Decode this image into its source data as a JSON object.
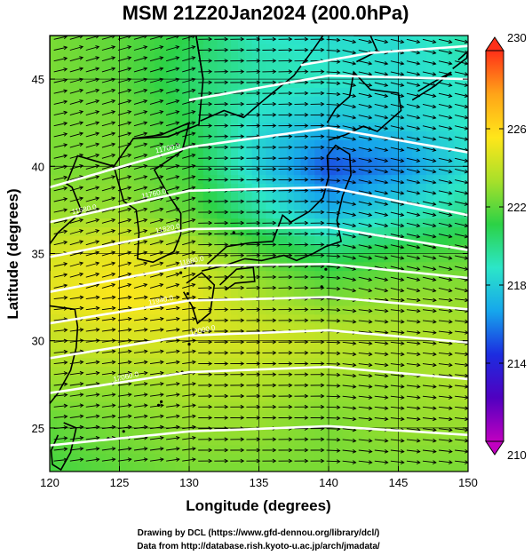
{
  "chart_data": {
    "type": "heatmap",
    "title": "MSM 21Z20Jan2024 (200.0hPa)",
    "xlabel": "Longitude (degrees)",
    "ylabel": "Latitude  (degrees)",
    "xlim": [
      120,
      150
    ],
    "ylim": [
      22.5,
      47.5
    ],
    "xticks": [
      120,
      125,
      130,
      135,
      140,
      145,
      150
    ],
    "yticks": [
      25,
      30,
      35,
      40,
      45
    ],
    "colorbar": {
      "min": 210,
      "max": 230,
      "ticks": [
        210,
        214,
        218,
        222,
        226,
        230
      ],
      "colors": [
        "#c000c0",
        "#5000c0",
        "#1c2ce0",
        "#16a6ec",
        "#2ce6c8",
        "#2cd246",
        "#a8e02a",
        "#ffe61a",
        "#ffa418",
        "#ff3018"
      ]
    },
    "temperature_field_K": {
      "lon": [
        120,
        125,
        130,
        135,
        140,
        145,
        150
      ],
      "lat": [
        47.5,
        45,
        42.5,
        40,
        37.5,
        35,
        32.5,
        30,
        27.5,
        25,
        22.5
      ],
      "values": [
        [
          222.5,
          222.0,
          221.0,
          219.0,
          218.5,
          218.5,
          219.5
        ],
        [
          222.5,
          222.0,
          220.5,
          219.5,
          219.0,
          218.5,
          219.0
        ],
        [
          222.5,
          222.5,
          221.0,
          218.5,
          217.5,
          218.0,
          219.0
        ],
        [
          222.5,
          222.5,
          221.5,
          218.0,
          215.0,
          216.0,
          218.5
        ],
        [
          223.0,
          223.0,
          222.0,
          219.5,
          217.0,
          218.5,
          220.0
        ],
        [
          224.5,
          225.0,
          224.0,
          222.0,
          220.5,
          221.5,
          222.0
        ],
        [
          225.0,
          225.5,
          225.0,
          223.5,
          222.5,
          223.0,
          223.0
        ],
        [
          224.0,
          224.5,
          224.5,
          224.5,
          224.0,
          223.5,
          223.5
        ],
        [
          223.0,
          223.0,
          223.5,
          223.5,
          223.0,
          223.0,
          223.5
        ],
        [
          222.0,
          222.5,
          223.0,
          223.0,
          222.5,
          223.0,
          223.0
        ],
        [
          221.5,
          222.0,
          222.5,
          222.5,
          222.5,
          222.5,
          222.5
        ]
      ]
    },
    "wind": {
      "direction": "westerly",
      "arrows": "uniform grid of black wind vectors"
    },
    "contours": {
      "field": "geopotential height (m)",
      "lines": [
        {
          "lat_at_lon": [
            [
              120,
              24.0
            ],
            [
              130,
              24.8
            ],
            [
              140,
              25.1
            ],
            [
              150,
              24.6
            ]
          ]
        },
        {
          "lat_at_lon": [
            [
              120,
              27.0
            ],
            [
              130,
              28.2
            ],
            [
              140,
              28.5
            ],
            [
              150,
              27.8
            ]
          ]
        },
        {
          "lat_at_lon": [
            [
              120,
              29.0
            ],
            [
              130,
              30.3
            ],
            [
              140,
              30.6
            ],
            [
              150,
              29.9
            ]
          ]
        },
        {
          "lat_at_lon": [
            [
              120,
              31.0
            ],
            [
              130,
              32.3
            ],
            [
              140,
              32.5
            ],
            [
              150,
              31.8
            ]
          ]
        },
        {
          "lat_at_lon": [
            [
              120,
              32.8
            ],
            [
              130,
              34.3
            ],
            [
              140,
              34.4
            ],
            [
              150,
              33.6
            ]
          ]
        },
        {
          "lat_at_lon": [
            [
              120,
              34.8
            ],
            [
              130,
              36.4
            ],
            [
              140,
              36.5
            ],
            [
              150,
              35.2
            ]
          ]
        },
        {
          "lat_at_lon": [
            [
              120,
              36.8
            ],
            [
              130,
              38.6
            ],
            [
              140,
              38.8
            ],
            [
              150,
              37.2
            ]
          ]
        },
        {
          "lat_at_lon": [
            [
              120,
              38.8
            ],
            [
              130,
              41.1
            ],
            [
              140,
              42.2
            ],
            [
              150,
              40.8
            ]
          ]
        },
        {
          "lat_at_lon": [
            [
              130,
              43.8
            ],
            [
              140,
              45.2
            ],
            [
              150,
              45.0
            ]
          ]
        },
        {
          "lat_at_lon": [
            [
              138,
              45.8
            ],
            [
              143,
              46.5
            ],
            [
              150,
              46.9
            ]
          ]
        }
      ],
      "labels": [
        "11580.0",
        "11700.0",
        "11760.0",
        "11820.0",
        "11880.0",
        "11940.0",
        "12000.0",
        "12060.0"
      ]
    },
    "credits": [
      "Drawing by DCL (https://www.gfd-dennou.org/library/dcl/)",
      "Data from http://database.rish.kyoto-u.ac.jp/arch/jmadata/"
    ]
  }
}
